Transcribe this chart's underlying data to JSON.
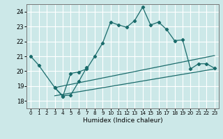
{
  "title": "",
  "xlabel": "Humidex (Indice chaleur)",
  "ylabel": "",
  "background_color": "#cce8e8",
  "grid_color": "#ffffff",
  "line_color": "#1a6b6b",
  "xlim": [
    -0.5,
    23.5
  ],
  "ylim": [
    17.5,
    24.5
  ],
  "xticks": [
    0,
    1,
    2,
    3,
    4,
    5,
    6,
    7,
    8,
    9,
    10,
    11,
    12,
    13,
    14,
    15,
    16,
    17,
    18,
    19,
    20,
    21,
    22,
    23
  ],
  "yticks": [
    18,
    19,
    20,
    21,
    22,
    23,
    24
  ],
  "series": {
    "main": {
      "x": [
        0,
        1,
        3,
        4,
        5,
        6,
        7,
        8,
        9,
        10,
        11,
        12,
        13,
        14,
        15,
        16,
        17,
        18,
        19,
        20,
        21,
        22,
        23
      ],
      "y": [
        21.0,
        20.4,
        18.9,
        18.3,
        19.85,
        19.95,
        20.15,
        21.0,
        21.9,
        23.3,
        23.1,
        22.95,
        23.4,
        24.3,
        23.1,
        23.3,
        22.8,
        22.05,
        22.1,
        20.15,
        20.5,
        20.5,
        20.2
      ]
    },
    "line2": {
      "x": [
        3,
        4,
        5,
        6,
        7
      ],
      "y": [
        18.9,
        18.35,
        18.4,
        19.3,
        20.25
      ]
    },
    "line3": {
      "x": [
        3,
        23
      ],
      "y": [
        18.9,
        21.05
      ]
    },
    "line4": {
      "x": [
        3,
        23
      ],
      "y": [
        18.35,
        20.15
      ]
    }
  }
}
